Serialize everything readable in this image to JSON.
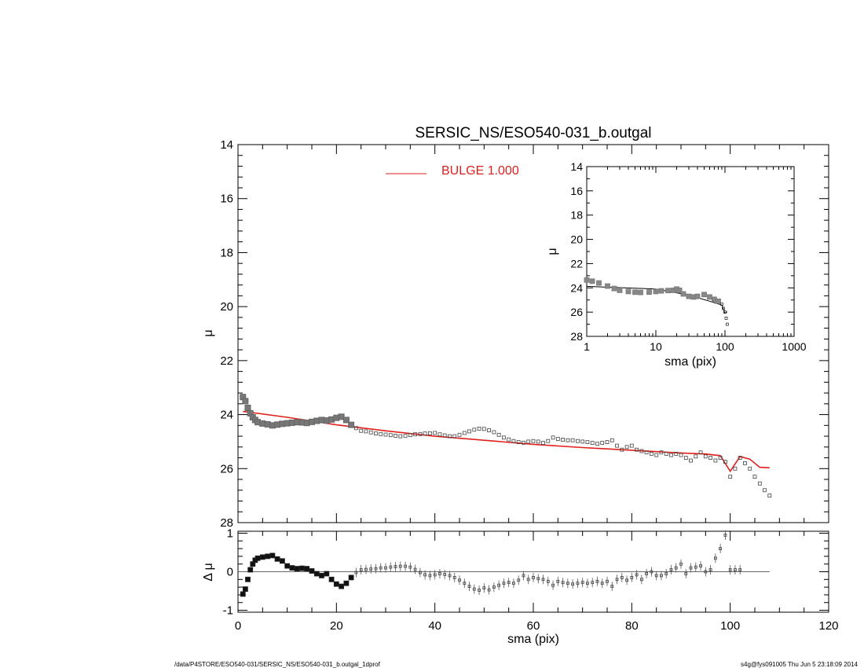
{
  "title": "SERSIC_NS/ESO540-031_b.outgal",
  "footer": {
    "left": "/data/P4STORE/ESO540-031/SERSIC_NS/ESO540-031_b.outgal_1dprof",
    "right": "s4g@fys091005  Thu Jun  5 23:18:09 2014"
  },
  "colors": {
    "model": "#e0201c",
    "data": "#555555",
    "axes": "#000000"
  },
  "legend": {
    "label": "BULGE  1.000",
    "color": "#e0201c"
  },
  "chart_data": [
    {
      "id": "main-profile",
      "type": "scatter",
      "xlabel": "",
      "ylabel": "μ",
      "xlim": [
        0,
        120
      ],
      "ylim": [
        28,
        14
      ],
      "y_inverted": true,
      "xticks": [
        0,
        20,
        40,
        60,
        80,
        100,
        120
      ],
      "yticks": [
        14,
        16,
        18,
        20,
        22,
        24,
        26,
        28
      ],
      "series": [
        {
          "role": "data",
          "marker": "square",
          "x": [
            1.0,
            1.5,
            2.0,
            2.5,
            3.0,
            3.5,
            4.0,
            5.0,
            6.0,
            7.0,
            8.0,
            9.0,
            10.0,
            11.0,
            12.0,
            13.0,
            14.0,
            15.0,
            16.0,
            17.0,
            18.0,
            19.0,
            20.0,
            21.0,
            22.0,
            23.0,
            24.0,
            25.0,
            26.0,
            27.0,
            28.0,
            29.0,
            30.0,
            31.0,
            32.0,
            33.0,
            34.0,
            35.0,
            36.0,
            37.0,
            38.0,
            39.0,
            40.0,
            41.0,
            42.0,
            43.0,
            44.0,
            45.0,
            46.0,
            47.0,
            48.0,
            49.0,
            50.0,
            51.0,
            52.0,
            53.0,
            54.0,
            55.0,
            56.0,
            57.0,
            58.0,
            59.0,
            60.0,
            61.0,
            62.0,
            63.0,
            64.0,
            65.0,
            66.0,
            67.0,
            68.0,
            69.0,
            70.0,
            71.0,
            72.0,
            73.0,
            74.0,
            75.0,
            76.0,
            77.0,
            78.0,
            79.0,
            80.0,
            81.0,
            82.0,
            83.0,
            84.0,
            85.0,
            86.0,
            87.0,
            88.0,
            89.0,
            90.0,
            91.0,
            92.0,
            93.0,
            94.0,
            95.0,
            96.0,
            97.0,
            98.0,
            99.0,
            100.0,
            101.0,
            102.0,
            103.0,
            104.0,
            105.0,
            106.0,
            107.0,
            108.0
          ],
          "y": [
            23.35,
            23.5,
            23.75,
            23.95,
            24.1,
            24.2,
            24.28,
            24.33,
            24.36,
            24.4,
            24.37,
            24.34,
            24.32,
            24.3,
            24.28,
            24.29,
            24.31,
            24.27,
            24.23,
            24.2,
            24.22,
            24.18,
            24.12,
            24.08,
            24.2,
            24.38,
            24.5,
            24.6,
            24.62,
            24.66,
            24.7,
            24.72,
            24.74,
            24.76,
            24.78,
            24.8,
            24.79,
            24.76,
            24.73,
            24.72,
            24.7,
            24.69,
            24.68,
            24.73,
            24.77,
            24.8,
            24.8,
            24.75,
            24.68,
            24.62,
            24.56,
            24.52,
            24.53,
            24.58,
            24.65,
            24.75,
            24.85,
            24.92,
            24.98,
            25.02,
            25.04,
            25.0,
            24.98,
            25.0,
            25.05,
            24.98,
            24.85,
            24.9,
            24.93,
            24.95,
            24.95,
            24.98,
            25.0,
            25.02,
            25.05,
            25.08,
            25.05,
            25.02,
            24.95,
            25.15,
            25.3,
            25.2,
            25.15,
            25.3,
            25.35,
            25.4,
            25.45,
            25.5,
            25.4,
            25.45,
            25.5,
            25.45,
            25.5,
            25.6,
            25.7,
            25.55,
            25.4,
            25.55,
            25.6,
            25.7,
            25.6,
            25.75,
            26.3,
            26.0,
            25.6,
            25.8,
            26.0,
            26.3,
            26.55,
            26.8,
            27.0
          ]
        },
        {
          "role": "model",
          "name": "BULGE  1.000",
          "x": [
            1,
            10,
            20,
            30,
            40,
            50,
            60,
            70,
            80,
            90,
            95,
            98,
            100,
            102,
            104,
            106,
            108
          ],
          "y": [
            23.88,
            24.1,
            24.38,
            24.6,
            24.8,
            24.95,
            25.1,
            25.22,
            25.32,
            25.42,
            25.46,
            25.52,
            26.1,
            25.55,
            25.65,
            25.95,
            25.97
          ]
        }
      ]
    },
    {
      "id": "residual-panel",
      "type": "scatter",
      "xlabel": "sma (pix)",
      "ylabel": "Δ μ",
      "xlim": [
        0,
        120
      ],
      "ylim": [
        -1.05,
        1.05
      ],
      "xticks": [
        0,
        20,
        40,
        60,
        80,
        100,
        120
      ],
      "yticks": [
        -1,
        0,
        1
      ],
      "zero_line": true,
      "series": [
        {
          "role": "residual",
          "marker": "square",
          "x": [
            1.0,
            1.5,
            2.0,
            2.5,
            3.0,
            3.5,
            4.0,
            5.0,
            6.0,
            7.0,
            8.0,
            9.0,
            10.0,
            11.0,
            12.0,
            13.0,
            14.0,
            15.0,
            16.0,
            17.0,
            18.0,
            19.0,
            20.0,
            21.0,
            22.0,
            23.0,
            24.0,
            25.0,
            26.0,
            27.0,
            28.0,
            29.0,
            30.0,
            31.0,
            32.0,
            33.0,
            34.0,
            35.0,
            36.0,
            37.0,
            38.0,
            39.0,
            40.0,
            41.0,
            42.0,
            43.0,
            44.0,
            45.0,
            46.0,
            47.0,
            48.0,
            49.0,
            50.0,
            51.0,
            52.0,
            53.0,
            54.0,
            55.0,
            56.0,
            57.0,
            58.0,
            59.0,
            60.0,
            61.0,
            62.0,
            63.0,
            64.0,
            65.0,
            66.0,
            67.0,
            68.0,
            69.0,
            70.0,
            71.0,
            72.0,
            73.0,
            74.0,
            75.0,
            76.0,
            77.0,
            78.0,
            79.0,
            80.0,
            81.0,
            82.0,
            83.0,
            84.0,
            85.0,
            86.0,
            87.0,
            88.0,
            89.0,
            90.0,
            91.0,
            92.0,
            93.0,
            94.0,
            95.0,
            96.0,
            97.0,
            98.0,
            99.0,
            100.0,
            101.0,
            102.0,
            103.0,
            104.0,
            105.0,
            106.0,
            107.0,
            108.0
          ],
          "y": [
            -0.58,
            -0.45,
            -0.2,
            0.05,
            0.2,
            0.3,
            0.35,
            0.38,
            0.4,
            0.42,
            0.33,
            0.28,
            0.15,
            0.1,
            0.08,
            0.09,
            0.08,
            0.02,
            -0.05,
            -0.1,
            -0.05,
            -0.2,
            -0.32,
            -0.38,
            -0.3,
            -0.15,
            -0.02,
            0.05,
            0.06,
            0.07,
            0.08,
            0.1,
            0.1,
            0.12,
            0.13,
            0.14,
            0.14,
            0.12,
            0.06,
            -0.02,
            -0.08,
            -0.1,
            -0.08,
            -0.05,
            -0.07,
            -0.1,
            -0.15,
            -0.22,
            -0.3,
            -0.38,
            -0.45,
            -0.48,
            -0.42,
            -0.47,
            -0.4,
            -0.35,
            -0.3,
            -0.28,
            -0.3,
            -0.22,
            -0.1,
            -0.2,
            -0.15,
            -0.18,
            -0.2,
            -0.25,
            -0.35,
            -0.25,
            -0.28,
            -0.3,
            -0.32,
            -0.3,
            -0.28,
            -0.3,
            -0.28,
            -0.25,
            -0.3,
            -0.25,
            -0.38,
            -0.2,
            -0.15,
            -0.22,
            -0.15,
            -0.08,
            -0.2,
            -0.05,
            0.0,
            -0.1,
            -0.1,
            -0.05,
            0.05,
            0.1,
            0.2,
            -0.05,
            0.1,
            0.12,
            0.15,
            0.0,
            0.05,
            0.35,
            0.6,
            0.95,
            0.05,
            0.05,
            0.05,
            0.05,
            0.05,
            0.05,
            0.05,
            0.05,
            0.05
          ]
        }
      ]
    },
    {
      "id": "inset-profile",
      "type": "scatter",
      "xlabel": "sma (pix)",
      "ylabel": "μ",
      "x_scale": "log",
      "xlim": [
        1,
        1000
      ],
      "ylim": [
        28,
        14
      ],
      "y_inverted": true,
      "xticks": [
        1,
        10,
        100,
        1000
      ],
      "xtick_labels": [
        "1",
        "10",
        "100",
        "1000"
      ],
      "yticks": [
        14,
        16,
        18,
        20,
        22,
        24,
        26,
        28
      ],
      "series": [
        {
          "role": "data",
          "marker": "square",
          "x": [
            1.0,
            1.2,
            1.5,
            2.0,
            2.5,
            3.0,
            4.0,
            5.0,
            6.0,
            8.0,
            10.0,
            12.0,
            15.0,
            18.0,
            20.0,
            22.0,
            25.0,
            30.0,
            35.0,
            40.0,
            50.0,
            60.0,
            70.0,
            80.0,
            90.0,
            95.0,
            100.0,
            104.0,
            108.0
          ],
          "y": [
            23.35,
            23.45,
            23.6,
            23.85,
            24.05,
            24.2,
            24.3,
            24.36,
            24.38,
            24.35,
            24.3,
            24.25,
            24.22,
            24.2,
            24.1,
            24.2,
            24.5,
            24.7,
            24.75,
            24.7,
            24.55,
            24.75,
            24.95,
            25.1,
            25.35,
            25.7,
            26.0,
            26.5,
            27.0
          ]
        },
        {
          "role": "model",
          "x": [
            1,
            10,
            30,
            60,
            90,
            100,
            108
          ],
          "y": [
            23.88,
            24.1,
            24.6,
            25.1,
            25.42,
            26.1,
            25.97
          ]
        }
      ]
    }
  ]
}
